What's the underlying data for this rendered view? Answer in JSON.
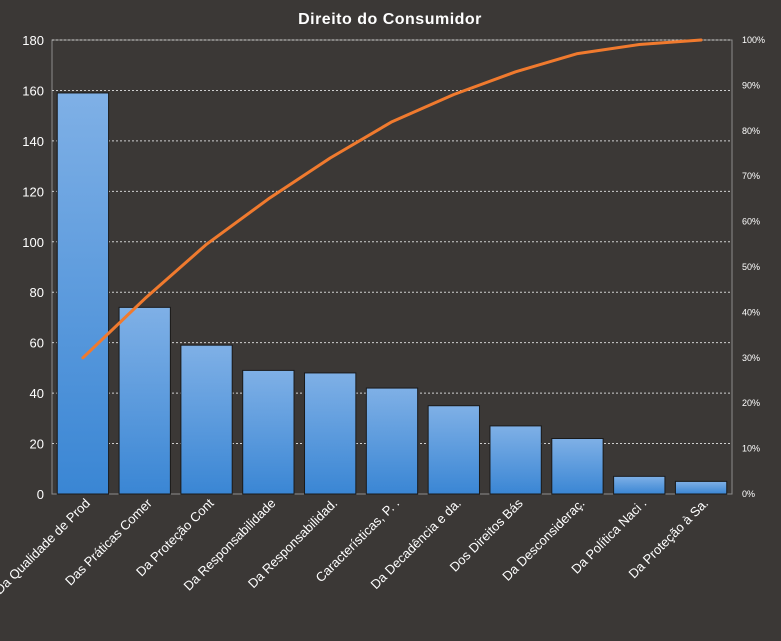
{
  "chart_data": {
    "type": "bar",
    "title": "Direito  do Consumidor",
    "categories": [
      "Da Qualidade de Prod",
      "Das Práticas Comer",
      "Da Proteção Cont",
      "Da Responsabilidade",
      "Da Responsabilidad.",
      "Características, P. .",
      "Da Decadência e da.",
      "Dos Direitos Bás",
      "Da Desconsideraç.",
      "Da Política Naci .",
      "Da Proteção à Sa."
    ],
    "series": [
      {
        "type": "bar",
        "values": [
          159,
          74,
          59,
          49,
          48,
          42,
          35,
          27,
          22,
          7,
          5
        ],
        "color": "#4a90d9"
      },
      {
        "type": "line",
        "axis": "right",
        "values": [
          30,
          43,
          55,
          65,
          74,
          82,
          88,
          93,
          97,
          99,
          100
        ],
        "color": "#f07a2e"
      }
    ],
    "ylim": [
      0,
      180
    ],
    "yticks": [
      "0",
      "20",
      "40",
      "60",
      "80",
      "100",
      "120",
      "140",
      "160",
      "180"
    ],
    "y2lim": [
      0,
      100
    ],
    "y2ticks": [
      "0%",
      "10%",
      "20%",
      "30%",
      "40%",
      "50%",
      "60%",
      "70%",
      "80%",
      "90%",
      "100%"
    ],
    "grid": true,
    "legend": "none"
  }
}
